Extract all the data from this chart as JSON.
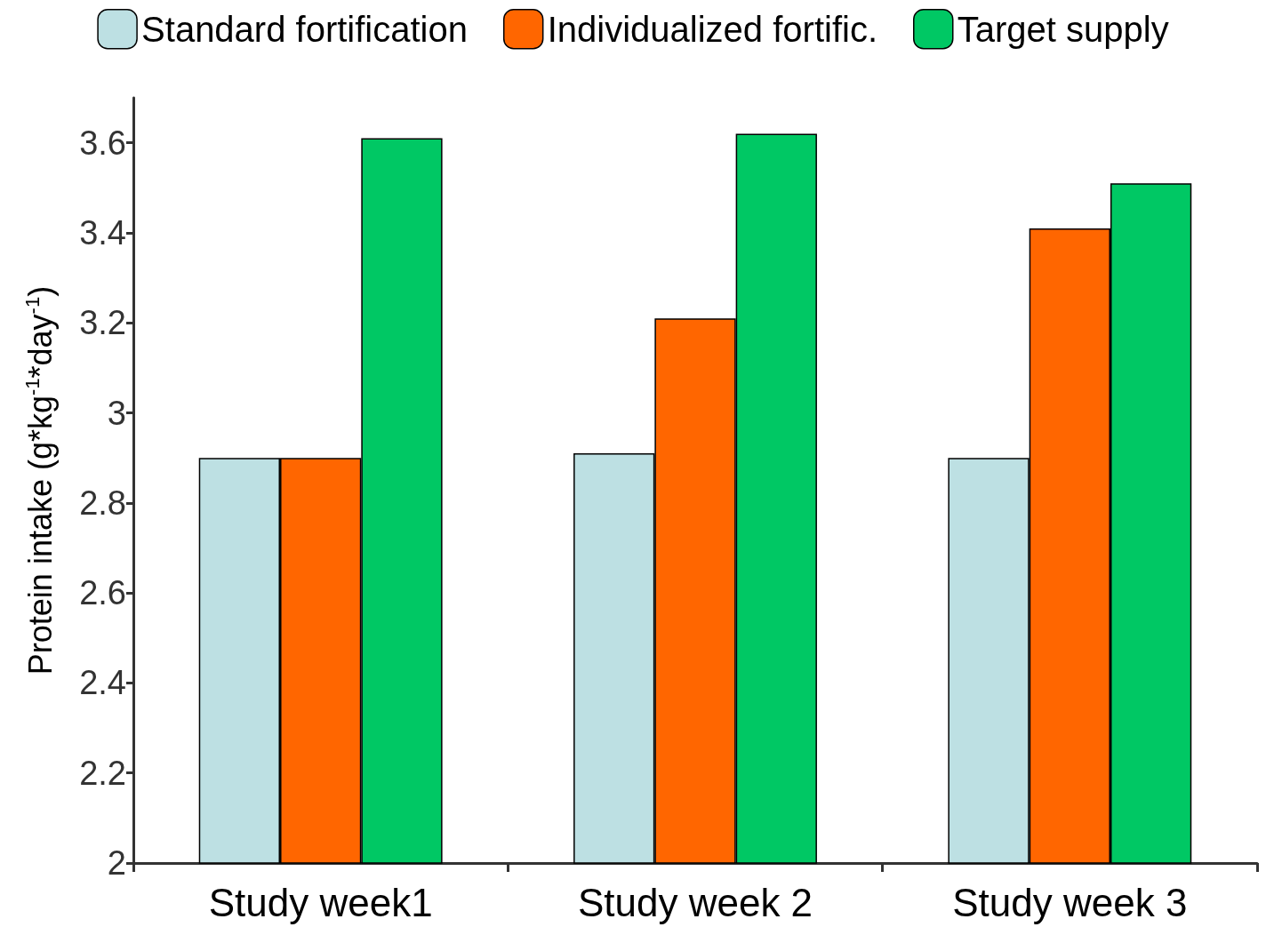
{
  "chart_data": {
    "type": "bar",
    "categories": [
      "Study week1",
      "Study week 2",
      "Study week 3"
    ],
    "series": [
      {
        "name": "Standard fortification",
        "color": "#bde0e3",
        "values": [
          2.9,
          2.91,
          2.9
        ]
      },
      {
        "name": "Individualized fortific.",
        "color": "#ff6600",
        "values": [
          2.9,
          3.21,
          3.41
        ]
      },
      {
        "name": "Target supply",
        "color": "#00c864",
        "values": [
          3.61,
          3.62,
          3.51
        ]
      }
    ],
    "ylabel": "Protein intake (g*kg$^{-1}$*day$^{-1}$)",
    "ylim": [
      2,
      3.7
    ],
    "yticks": [
      2,
      2.2,
      2.4,
      2.6,
      2.8,
      3,
      3.2,
      3.4,
      3.6
    ],
    "grid": false,
    "legend": "top"
  }
}
